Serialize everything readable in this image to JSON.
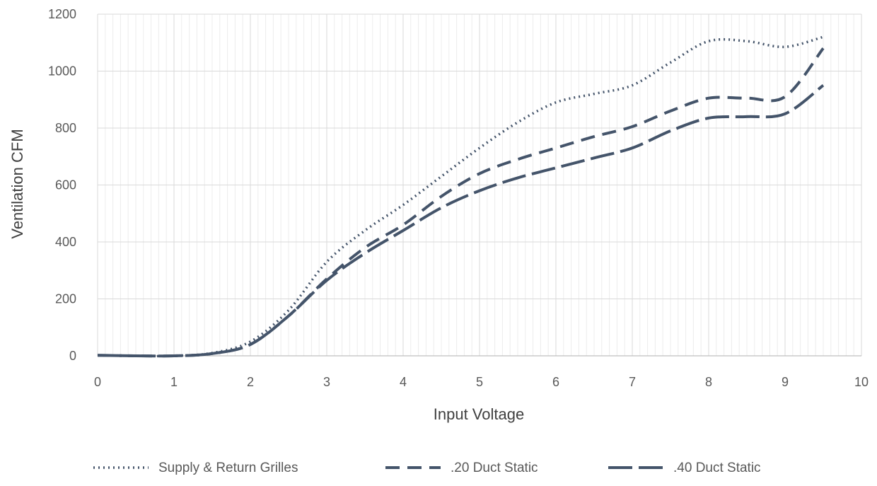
{
  "chart_data": {
    "type": "line",
    "xlabel": "Input Voltage",
    "ylabel": "Ventilation CFM",
    "xlim": [
      0,
      10
    ],
    "ylim": [
      0,
      1200
    ],
    "x_ticks": [
      "0",
      "1",
      "2",
      "3",
      "4",
      "5",
      "6",
      "7",
      "8",
      "9",
      "10"
    ],
    "y_ticks": [
      "0",
      "200",
      "400",
      "600",
      "800",
      "1000",
      "1200"
    ],
    "grid": "major and minor vertical gridlines, major horizontal gridlines",
    "legend_position": "bottom",
    "color": "#44546A",
    "series": [
      {
        "name": "Supply & Return Grilles",
        "dash": "dotted",
        "points": [
          [
            0,
            2
          ],
          [
            0.5,
            0
          ],
          [
            1,
            0
          ],
          [
            1.5,
            10
          ],
          [
            2,
            50
          ],
          [
            2.5,
            160
          ],
          [
            3,
            330
          ],
          [
            3.5,
            440
          ],
          [
            4,
            530
          ],
          [
            4.5,
            630
          ],
          [
            5,
            730
          ],
          [
            5.5,
            820
          ],
          [
            6,
            890
          ],
          [
            6.5,
            920
          ],
          [
            7,
            950
          ],
          [
            7.5,
            1030
          ],
          [
            8,
            1105
          ],
          [
            8.5,
            1105
          ],
          [
            9,
            1085
          ],
          [
            9.5,
            1120
          ]
        ]
      },
      {
        "name": ".20 Duct Static",
        "dash": "dash",
        "points": [
          [
            0,
            2
          ],
          [
            0.5,
            0
          ],
          [
            1,
            0
          ],
          [
            1.5,
            8
          ],
          [
            2,
            40
          ],
          [
            2.5,
            140
          ],
          [
            3,
            270
          ],
          [
            3.5,
            380
          ],
          [
            4,
            460
          ],
          [
            4.5,
            560
          ],
          [
            5,
            640
          ],
          [
            5.5,
            690
          ],
          [
            6,
            730
          ],
          [
            6.5,
            770
          ],
          [
            7,
            805
          ],
          [
            7.5,
            860
          ],
          [
            8,
            905
          ],
          [
            8.5,
            905
          ],
          [
            9,
            910
          ],
          [
            9.5,
            1080
          ]
        ]
      },
      {
        "name": ".40 Duct Static",
        "dash": "longdash",
        "points": [
          [
            0,
            2
          ],
          [
            0.5,
            0
          ],
          [
            1,
            0
          ],
          [
            1.5,
            8
          ],
          [
            2,
            40
          ],
          [
            2.5,
            140
          ],
          [
            3,
            265
          ],
          [
            3.5,
            360
          ],
          [
            4,
            440
          ],
          [
            4.5,
            520
          ],
          [
            5,
            580
          ],
          [
            5.5,
            625
          ],
          [
            6,
            660
          ],
          [
            6.5,
            695
          ],
          [
            7,
            730
          ],
          [
            7.5,
            790
          ],
          [
            8,
            835
          ],
          [
            8.5,
            840
          ],
          [
            9,
            850
          ],
          [
            9.5,
            950
          ]
        ]
      }
    ]
  }
}
